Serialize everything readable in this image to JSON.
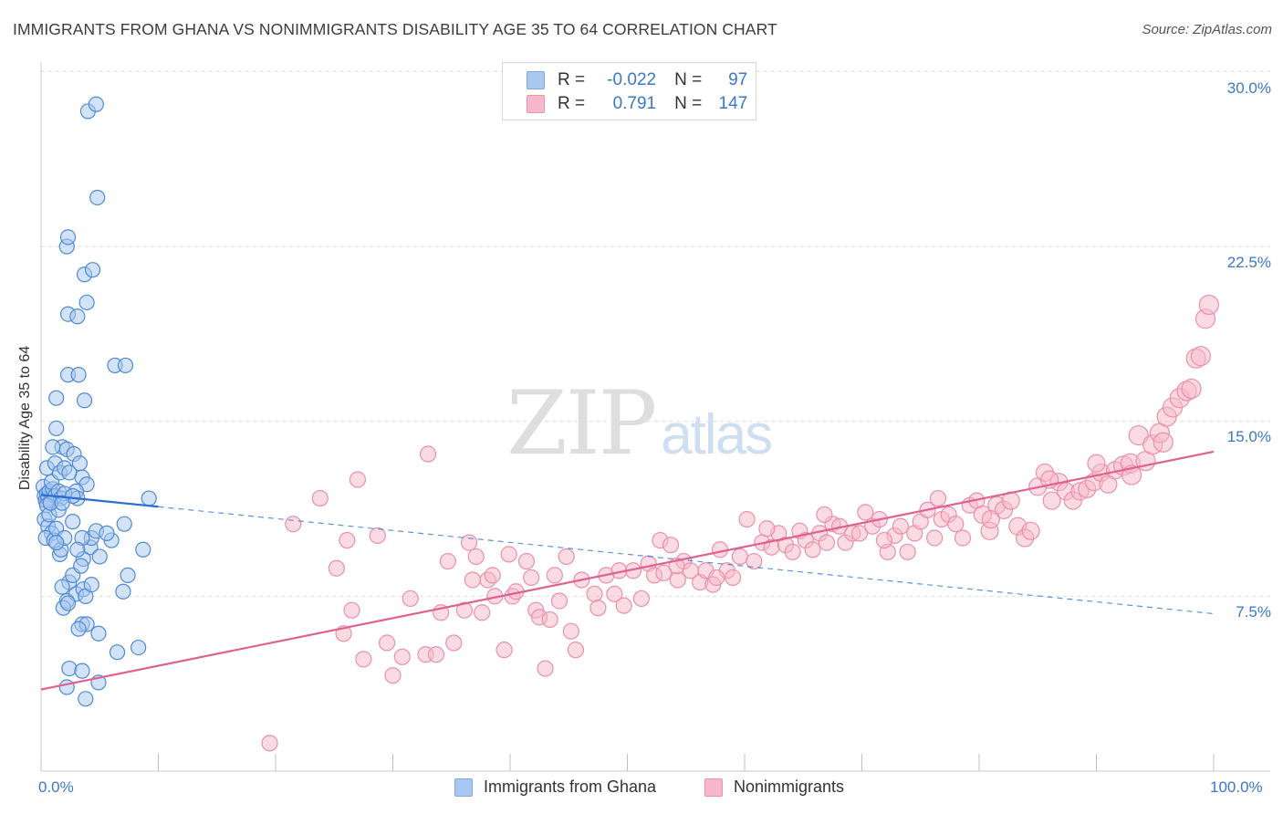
{
  "title": "IMMIGRANTS FROM GHANA VS NONIMMIGRANTS DISABILITY AGE 35 TO 64 CORRELATION CHART",
  "source": "Source: ZipAtlas.com",
  "watermark": {
    "zip": "ZIP",
    "atlas": "atlas"
  },
  "legend_top": {
    "r_label": "R =",
    "n_label": "N =",
    "rows": [
      {
        "r": "-0.022",
        "n": "97",
        "color": "#a8c8f0"
      },
      {
        "r": "0.791",
        "n": "147",
        "color": "#f6b8ca"
      }
    ]
  },
  "legend_bottom": [
    {
      "label": "Immigrants from Ghana",
      "color": "#a8c8f0"
    },
    {
      "label": "Nonimmigrants",
      "color": "#f6b8ca"
    }
  ],
  "colors": {
    "blue_line": "#2a6fd0",
    "pink_line": "#e0608e",
    "blue_fill": "#a8c8f0",
    "pink_fill": "#f6b8ca",
    "tick_text": "#3b78c6"
  },
  "chart_data": {
    "type": "scatter",
    "title": "IMMIGRANTS FROM GHANA VS NONIMMIGRANTS DISABILITY AGE 35 TO 64 CORRELATION CHART",
    "xlabel": "",
    "ylabel": "Disability Age 35 to 64",
    "xlim": [
      0,
      100
    ],
    "ylim": [
      0,
      31
    ],
    "x_tick_labels": [
      "0.0%",
      "100.0%"
    ],
    "y_ticks": [
      7.5,
      15.0,
      22.5,
      30.0
    ],
    "y_tick_labels": [
      "7.5%",
      "15.0%",
      "22.5%",
      "30.0%"
    ],
    "grid": true,
    "legend": "bottom",
    "series": [
      {
        "name": "Immigrants from Ghana",
        "points": [
          [
            0.2,
            12.2
          ],
          [
            0.3,
            11.8
          ],
          [
            0.4,
            11.6
          ],
          [
            0.5,
            11.9
          ],
          [
            0.6,
            11.7
          ],
          [
            0.7,
            12.0
          ],
          [
            0.8,
            11.5
          ],
          [
            1.0,
            12.1
          ],
          [
            1.2,
            11.8
          ],
          [
            0.5,
            11.4
          ],
          [
            0.3,
            10.8
          ],
          [
            0.6,
            10.5
          ],
          [
            0.9,
            10.2
          ],
          [
            0.4,
            10.0
          ],
          [
            1.1,
            9.9
          ],
          [
            0.7,
            11.0
          ],
          [
            1.3,
            10.4
          ],
          [
            0.9,
            12.4
          ],
          [
            1.5,
            12.0
          ],
          [
            1.7,
            11.7
          ],
          [
            0.5,
            13.0
          ],
          [
            1.2,
            13.2
          ],
          [
            1.6,
            12.8
          ],
          [
            2.0,
            13.0
          ],
          [
            1.8,
            13.9
          ],
          [
            1.0,
            13.9
          ],
          [
            2.2,
            13.8
          ],
          [
            2.8,
            13.6
          ],
          [
            3.3,
            13.2
          ],
          [
            3.5,
            12.6
          ],
          [
            3.9,
            12.3
          ],
          [
            2.4,
            12.8
          ],
          [
            3.0,
            12.0
          ],
          [
            3.1,
            11.7
          ],
          [
            2.0,
            11.9
          ],
          [
            2.7,
            11.8
          ],
          [
            1.5,
            11.2
          ],
          [
            1.3,
            14.7
          ],
          [
            1.3,
            16.0
          ],
          [
            2.3,
            17.0
          ],
          [
            3.2,
            17.0
          ],
          [
            3.7,
            15.9
          ],
          [
            2.3,
            19.6
          ],
          [
            3.1,
            19.5
          ],
          [
            3.9,
            20.1
          ],
          [
            3.7,
            21.3
          ],
          [
            4.4,
            21.5
          ],
          [
            2.2,
            22.5
          ],
          [
            2.3,
            22.9
          ],
          [
            4.8,
            24.6
          ],
          [
            4.0,
            28.3
          ],
          [
            4.7,
            28.6
          ],
          [
            6.3,
            17.4
          ],
          [
            7.2,
            17.4
          ],
          [
            1.6,
            9.3
          ],
          [
            1.7,
            9.5
          ],
          [
            2.4,
            8.1
          ],
          [
            2.7,
            8.4
          ],
          [
            1.8,
            7.9
          ],
          [
            2.2,
            7.3
          ],
          [
            3.0,
            7.6
          ],
          [
            3.6,
            7.8
          ],
          [
            1.9,
            7.0
          ],
          [
            2.3,
            7.2
          ],
          [
            3.8,
            7.5
          ],
          [
            4.3,
            8.0
          ],
          [
            3.6,
            9.1
          ],
          [
            4.2,
            9.6
          ],
          [
            5.0,
            9.2
          ],
          [
            4.3,
            10.0
          ],
          [
            3.5,
            10.0
          ],
          [
            4.7,
            10.3
          ],
          [
            2.7,
            10.7
          ],
          [
            7.1,
            10.6
          ],
          [
            8.7,
            9.5
          ],
          [
            7.4,
            8.4
          ],
          [
            7.0,
            7.7
          ],
          [
            6.0,
            9.9
          ],
          [
            2.0,
            10.0
          ],
          [
            1.3,
            9.8
          ],
          [
            3.4,
            8.8
          ],
          [
            5.6,
            10.2
          ],
          [
            3.1,
            9.5
          ],
          [
            3.5,
            6.3
          ],
          [
            3.9,
            6.3
          ],
          [
            3.2,
            6.1
          ],
          [
            4.9,
            5.9
          ],
          [
            6.5,
            5.1
          ],
          [
            8.3,
            5.3
          ],
          [
            2.4,
            4.4
          ],
          [
            3.5,
            4.3
          ],
          [
            2.2,
            3.6
          ],
          [
            4.9,
            3.8
          ],
          [
            3.8,
            3.1
          ],
          [
            9.2,
            11.7
          ],
          [
            0.8,
            11.5
          ],
          [
            1.8,
            11.5
          ]
        ]
      },
      {
        "name": "Nonimmigrants",
        "points": [
          [
            19.5,
            1.2
          ],
          [
            21.5,
            10.6
          ],
          [
            23.8,
            11.7
          ],
          [
            25.2,
            8.7
          ],
          [
            25.8,
            5.9
          ],
          [
            26.1,
            9.9
          ],
          [
            26.5,
            6.9
          ],
          [
            27.0,
            12.5
          ],
          [
            27.5,
            4.8
          ],
          [
            28.7,
            10.1
          ],
          [
            29.5,
            5.5
          ],
          [
            30.0,
            4.1
          ],
          [
            30.8,
            4.9
          ],
          [
            31.5,
            7.4
          ],
          [
            32.8,
            5.0
          ],
          [
            33.0,
            13.6
          ],
          [
            33.7,
            5.0
          ],
          [
            34.1,
            6.8
          ],
          [
            34.7,
            9.0
          ],
          [
            35.2,
            5.5
          ],
          [
            36.1,
            6.9
          ],
          [
            36.8,
            8.2
          ],
          [
            37.1,
            9.2
          ],
          [
            37.6,
            6.8
          ],
          [
            38.1,
            8.2
          ],
          [
            38.5,
            8.4
          ],
          [
            38.7,
            7.5
          ],
          [
            39.5,
            5.2
          ],
          [
            39.9,
            9.3
          ],
          [
            40.2,
            7.5
          ],
          [
            40.5,
            7.7
          ],
          [
            41.4,
            9.0
          ],
          [
            41.8,
            8.3
          ],
          [
            42.2,
            6.9
          ],
          [
            42.5,
            6.6
          ],
          [
            43.0,
            4.4
          ],
          [
            43.4,
            6.5
          ],
          [
            43.8,
            8.4
          ],
          [
            44.2,
            7.3
          ],
          [
            45.2,
            6.0
          ],
          [
            45.6,
            5.2
          ],
          [
            46.1,
            8.2
          ],
          [
            47.2,
            7.6
          ],
          [
            47.5,
            7.0
          ],
          [
            48.2,
            8.4
          ],
          [
            48.9,
            7.6
          ],
          [
            49.3,
            8.6
          ],
          [
            49.7,
            7.1
          ],
          [
            50.5,
            8.6
          ],
          [
            51.2,
            7.4
          ],
          [
            51.8,
            8.9
          ],
          [
            52.3,
            8.4
          ],
          [
            52.8,
            9.9
          ],
          [
            53.1,
            8.5
          ],
          [
            53.7,
            9.7
          ],
          [
            54.3,
            8.2
          ],
          [
            54.8,
            9.0
          ],
          [
            55.4,
            8.6
          ],
          [
            56.2,
            8.1
          ],
          [
            56.7,
            8.6
          ],
          [
            57.3,
            8.0
          ],
          [
            57.9,
            9.5
          ],
          [
            58.5,
            8.6
          ],
          [
            59.0,
            8.3
          ],
          [
            59.6,
            9.2
          ],
          [
            60.2,
            10.8
          ],
          [
            60.8,
            9.0
          ],
          [
            61.5,
            9.8
          ],
          [
            62.3,
            9.6
          ],
          [
            62.9,
            10.2
          ],
          [
            63.5,
            9.7
          ],
          [
            64.1,
            9.4
          ],
          [
            64.7,
            10.3
          ],
          [
            65.2,
            9.9
          ],
          [
            65.8,
            9.5
          ],
          [
            66.4,
            10.2
          ],
          [
            67.0,
            9.8
          ],
          [
            67.5,
            10.6
          ],
          [
            68.1,
            10.5
          ],
          [
            68.6,
            9.8
          ],
          [
            69.2,
            10.2
          ],
          [
            69.8,
            10.2
          ],
          [
            70.3,
            11.1
          ],
          [
            70.9,
            10.5
          ],
          [
            71.5,
            10.8
          ],
          [
            72.2,
            9.4
          ],
          [
            72.8,
            10.1
          ],
          [
            73.3,
            10.5
          ],
          [
            73.9,
            9.4
          ],
          [
            74.5,
            10.2
          ],
          [
            75.0,
            10.7
          ],
          [
            75.6,
            11.2
          ],
          [
            76.2,
            10.0
          ],
          [
            76.8,
            10.8
          ],
          [
            77.4,
            11.0
          ],
          [
            78.0,
            10.6
          ],
          [
            78.6,
            10.0
          ],
          [
            79.2,
            11.4
          ],
          [
            79.8,
            11.6
          ],
          [
            80.3,
            11.0
          ],
          [
            80.9,
            10.3
          ],
          [
            81.5,
            11.4
          ],
          [
            82.1,
            11.2
          ],
          [
            82.7,
            11.6
          ],
          [
            83.3,
            10.5
          ],
          [
            83.9,
            10.0
          ],
          [
            84.4,
            10.3
          ],
          [
            85.0,
            12.2
          ],
          [
            85.6,
            12.8
          ],
          [
            86.2,
            11.6
          ],
          [
            86.8,
            12.4
          ],
          [
            87.4,
            12.0
          ],
          [
            88.0,
            11.6
          ],
          [
            88.6,
            12.0
          ],
          [
            89.2,
            12.1
          ],
          [
            89.8,
            12.4
          ],
          [
            90.4,
            12.8
          ],
          [
            91.0,
            12.3
          ],
          [
            91.6,
            12.9
          ],
          [
            92.3,
            13.1
          ],
          [
            92.9,
            13.2
          ],
          [
            93.6,
            14.4
          ],
          [
            94.2,
            13.3
          ],
          [
            94.8,
            14.0
          ],
          [
            95.4,
            14.5
          ],
          [
            96.0,
            15.2
          ],
          [
            96.5,
            15.6
          ],
          [
            97.1,
            16.0
          ],
          [
            97.7,
            16.3
          ],
          [
            98.1,
            16.4
          ],
          [
            98.5,
            17.7
          ],
          [
            98.9,
            17.8
          ],
          [
            99.3,
            19.4
          ],
          [
            99.6,
            20.0
          ],
          [
            54.2,
            8.8
          ],
          [
            57.6,
            8.3
          ],
          [
            61.9,
            10.4
          ],
          [
            66.8,
            11.0
          ],
          [
            71.9,
            9.9
          ],
          [
            76.5,
            11.7
          ],
          [
            81.0,
            10.8
          ],
          [
            86.0,
            12.5
          ],
          [
            90.0,
            13.2
          ],
          [
            93.0,
            12.7
          ],
          [
            95.7,
            14.1
          ],
          [
            36.5,
            9.8
          ],
          [
            44.8,
            9.2
          ]
        ]
      }
    ],
    "trendlines": [
      {
        "series": "Immigrants from Ghana",
        "solid_x": [
          0,
          10
        ],
        "dashed_x": [
          10,
          100
        ],
        "y_at_x0": 11.85,
        "y_at_x100": 6.75
      },
      {
        "series": "Nonimmigrants",
        "solid_x": [
          0,
          100
        ],
        "y_at_x0": 3.5,
        "y_at_x100": 13.7
      }
    ]
  }
}
